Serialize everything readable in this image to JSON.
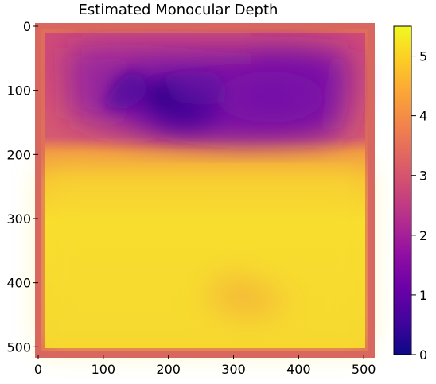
{
  "chart_data": {
    "type": "heatmap",
    "title": "Estimated Monocular Depth",
    "xlabel": "",
    "ylabel": "",
    "xlim": [
      0,
      512
    ],
    "ylim": [
      512,
      0
    ],
    "x_ticks": [
      "0",
      "100",
      "200",
      "300",
      "400",
      "500"
    ],
    "y_ticks": [
      "0",
      "100",
      "200",
      "300",
      "400",
      "500"
    ],
    "colorbar": {
      "colormap": "plasma",
      "range": [
        0,
        5.5
      ],
      "ticks": [
        "0",
        "1",
        "2",
        "3",
        "4",
        "5"
      ]
    },
    "depth_summary": {
      "image_size": [
        512,
        512
      ],
      "border_value": 3.8,
      "upper_region_y_range": [
        20,
        180
      ],
      "upper_region_value": 1.3,
      "darkest_value": 0.6,
      "darkest_point": [
        190,
        110
      ],
      "lower_region_y_range": [
        200,
        500
      ],
      "lower_region_value": 5.2,
      "lower_warm_patch_center": [
        310,
        420
      ],
      "lower_warm_patch_value": 4.5
    }
  }
}
